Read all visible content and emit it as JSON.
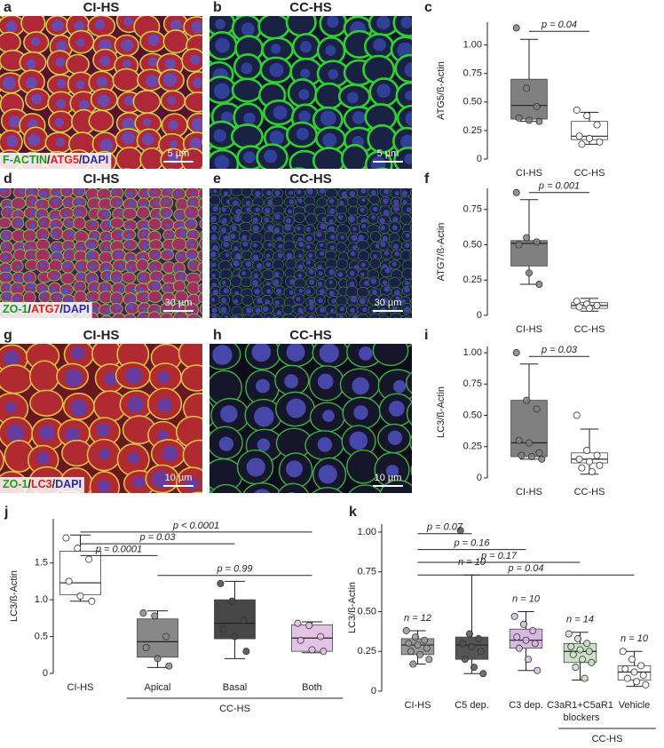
{
  "panels": [
    {
      "letter": "a",
      "title": "CI-HS",
      "stain": [
        {
          "text": "F-ACTIN",
          "color": "#1a9e1a"
        },
        {
          "text": "/",
          "color": "#222222"
        },
        {
          "text": "ATG5",
          "color": "#e0201a"
        },
        {
          "text": "/",
          "color": "#222222"
        },
        {
          "text": "DAPI",
          "color": "#2a2ab0"
        }
      ],
      "scale_bar": "5 µm"
    },
    {
      "letter": "b",
      "title": "CC-HS",
      "scale_bar": "5 µm"
    },
    {
      "letter": "d",
      "title": "CI-HS",
      "stain": [
        {
          "text": "ZO-1",
          "color": "#1a9e1a"
        },
        {
          "text": "/",
          "color": "#222222"
        },
        {
          "text": "ATG7",
          "color": "#e0201a"
        },
        {
          "text": "/",
          "color": "#222222"
        },
        {
          "text": "DAPI",
          "color": "#2a2ab0"
        }
      ],
      "scale_bar": "30 µm"
    },
    {
      "letter": "e",
      "title": "CC-HS",
      "scale_bar": "30 µm"
    },
    {
      "letter": "g",
      "title": "CI-HS",
      "stain": [
        {
          "text": "ZO-1",
          "color": "#1a9e1a"
        },
        {
          "text": "/",
          "color": "#222222"
        },
        {
          "text": "LC3",
          "color": "#e0201a"
        },
        {
          "text": "/",
          "color": "#222222"
        },
        {
          "text": "DAPI",
          "color": "#2a2ab0"
        }
      ],
      "scale_bar": "10 µm"
    },
    {
      "letter": "h",
      "title": "CC-HS",
      "scale_bar": "10 µm"
    }
  ],
  "chart_data": [
    {
      "type": "box",
      "letter": "c",
      "ylabel": "ATG5/ß-Actin",
      "ylim": [
        0,
        1.2
      ],
      "yticks": [
        0,
        0.25,
        {
          "value": 0.5,
          "label": "0.50"
        },
        0.75,
        {
          "value": 1,
          "label": "1.00"
        }
      ],
      "categories": [
        "CI-HS",
        "CC-HS"
      ],
      "boxes": [
        {
          "color": "#808080",
          "min": 0.33,
          "q1": 0.35,
          "median": 0.47,
          "q3": 0.7,
          "max": 1.05,
          "points": [
            1.15,
            0.62,
            0.46,
            0.36,
            0.34,
            0.33
          ]
        },
        {
          "color": "#ffffff",
          "min": 0.13,
          "q1": 0.17,
          "median": 0.2,
          "q3": 0.33,
          "max": 0.41,
          "points": [
            0.43,
            0.38,
            0.3,
            0.2,
            0.18,
            0.15,
            0.13
          ]
        }
      ],
      "brackets": [
        {
          "text": "p = 0.04",
          "from": "CI-HS",
          "to": "CC-HS",
          "y": 1.12
        }
      ]
    },
    {
      "type": "box",
      "letter": "f",
      "ylabel": "ATG7/ß-Actin",
      "ylim": [
        0,
        0.9
      ],
      "yticks": [
        0,
        0.25,
        {
          "value": 0.5,
          "label": "0.50"
        },
        0.75
      ],
      "categories": [
        "CI-HS",
        "CC-HS"
      ],
      "boxes": [
        {
          "color": "#808080",
          "min": 0.22,
          "q1": 0.35,
          "median": 0.51,
          "q3": 0.53,
          "max": 0.82,
          "points": [
            0.87,
            0.55,
            0.52,
            0.5,
            0.3,
            0.22
          ]
        },
        {
          "color": "#ffffff",
          "min": 0.03,
          "q1": 0.05,
          "median": 0.07,
          "q3": 0.09,
          "max": 0.12,
          "points": [
            0.1,
            0.08,
            0.07,
            0.06,
            0.05
          ]
        }
      ],
      "brackets": [
        {
          "text": "p = 0.001",
          "from": "CI-HS",
          "to": "CC-HS",
          "y": 0.87
        }
      ]
    },
    {
      "type": "box",
      "letter": "i",
      "ylabel": "LC3/ß-Actin",
      "ylim": [
        0,
        1.05
      ],
      "yticks": [
        0,
        0.25,
        {
          "value": 0.5,
          "label": "0.50"
        },
        0.75,
        {
          "value": 1,
          "label": "1.00"
        }
      ],
      "categories": [
        "CI-HS",
        "CC-HS"
      ],
      "boxes": [
        {
          "color": "#808080",
          "min": 0.15,
          "q1": 0.17,
          "median": 0.28,
          "q3": 0.62,
          "max": 0.91,
          "points": [
            1.0,
            0.62,
            0.55,
            0.3,
            0.28,
            0.2,
            0.18,
            0.17,
            0.15
          ]
        },
        {
          "color": "#ffffff",
          "min": 0.03,
          "q1": 0.12,
          "median": 0.15,
          "q3": 0.2,
          "max": 0.39,
          "points": [
            0.5,
            0.22,
            0.18,
            0.15,
            0.13,
            0.1,
            0.08,
            0.05
          ]
        }
      ],
      "brackets": [
        {
          "text": "p = 0.03",
          "from": "CI-HS",
          "to": "CC-HS",
          "y": 0.97
        }
      ]
    },
    {
      "type": "box",
      "letter": "j",
      "ylabel": "LC3/ß-Actin",
      "ylim": [
        0,
        2.1
      ],
      "yticks": [
        0,
        0.5,
        {
          "value": 1,
          "label": "1.0"
        },
        1.5
      ],
      "categories": [
        "CI-HS",
        "Apical",
        "Basal",
        "Both"
      ],
      "boxes": [
        {
          "color": "#ffffff",
          "min": 0.98,
          "q1": 1.07,
          "median": 1.23,
          "q3": 1.66,
          "max": 1.88,
          "points": [
            1.84,
            1.7,
            1.55,
            1.25,
            1.05,
            0.98
          ]
        },
        {
          "color": "#888888",
          "min": 0.08,
          "q1": 0.22,
          "median": 0.43,
          "q3": 0.74,
          "max": 0.85,
          "points": [
            0.82,
            0.78,
            0.5,
            0.35,
            0.2,
            0.1
          ]
        },
        {
          "color": "#474747",
          "min": 0.2,
          "q1": 0.47,
          "median": 0.68,
          "q3": 1.0,
          "max": 1.25,
          "points": [
            1.22,
            0.98,
            0.72,
            0.6,
            0.5,
            0.3
          ]
        },
        {
          "color": "#e3c4e6",
          "min": 0.28,
          "q1": 0.3,
          "median": 0.48,
          "q3": 0.66,
          "max": 0.7,
          "points": [
            0.68,
            0.65,
            0.5,
            0.45,
            0.32,
            0.3
          ]
        }
      ],
      "brackets": [
        {
          "text": "p < 0.0001",
          "from": "CI-HS",
          "to": "Both",
          "y": 1.92
        },
        {
          "text": "p = 0.03",
          "from": "CI-HS",
          "to": "Basal",
          "y": 1.76
        },
        {
          "text": "p = 0.0001",
          "from": "CI-HS",
          "to": "Apical",
          "y": 1.6
        },
        {
          "text": "p = 0.99",
          "from": "Apical",
          "to": "Both",
          "y": 1.33
        }
      ],
      "groups": [
        {
          "label": "CC-HS",
          "categories": [
            "Apical",
            "Basal",
            "Both"
          ]
        }
      ]
    },
    {
      "type": "box",
      "letter": "k",
      "ylabel": "LC3/ß-Actin",
      "ylim": [
        0,
        1.05
      ],
      "yticks": [
        0,
        0.25,
        {
          "value": 0.5,
          "label": "0.50"
        },
        0.75,
        {
          "value": 1,
          "label": "1.00"
        }
      ],
      "categories": [
        "CI-HS",
        "C5 dep.",
        "C3 dep.",
        "C3aR1+C5aR1 blockers",
        "Vehicle"
      ],
      "n_labels": [
        "n = 12",
        "n = 10",
        "n = 10",
        "n = 14",
        "n = 10"
      ],
      "boxes": [
        {
          "color": "#999999",
          "min": 0.17,
          "q1": 0.23,
          "median": 0.29,
          "q3": 0.33,
          "max": 0.38,
          "points": [
            0.38,
            0.34,
            0.32,
            0.3,
            0.29,
            0.27,
            0.25,
            0.23,
            0.2,
            0.17
          ]
        },
        {
          "color": "#555555",
          "min": 0.11,
          "q1": 0.2,
          "median": 0.29,
          "q3": 0.34,
          "max": 0.73,
          "points": [
            1.01,
            0.36,
            0.33,
            0.3,
            0.28,
            0.25,
            0.2,
            0.15,
            0.11
          ]
        },
        {
          "color": "#d8b8e0",
          "min": 0.13,
          "q1": 0.27,
          "median": 0.32,
          "q3": 0.39,
          "max": 0.5,
          "points": [
            0.47,
            0.42,
            0.38,
            0.34,
            0.32,
            0.3,
            0.27,
            0.2,
            0.13
          ]
        },
        {
          "color": "#cfe0c8",
          "min": 0.07,
          "q1": 0.18,
          "median": 0.25,
          "q3": 0.3,
          "max": 0.37,
          "points": [
            0.36,
            0.33,
            0.3,
            0.28,
            0.26,
            0.25,
            0.23,
            0.2,
            0.18,
            0.15,
            0.08
          ]
        },
        {
          "color": "#ffffff",
          "min": 0.03,
          "q1": 0.07,
          "median": 0.12,
          "q3": 0.16,
          "max": 0.25,
          "points": [
            0.25,
            0.2,
            0.16,
            0.14,
            0.12,
            0.1,
            0.08,
            0.06,
            0.04
          ]
        }
      ],
      "brackets": [
        {
          "text": "p = 0.07",
          "from": "CI-HS",
          "to": "C5 dep.",
          "y": 0.99
        },
        {
          "text": "p = 0.16",
          "from": "CI-HS",
          "to": "C3 dep.",
          "y": 0.89
        },
        {
          "text": "p = 0.17",
          "from": "CI-HS",
          "to": "C3aR1+C5aR1 blockers",
          "y": 0.81
        },
        {
          "text": "p = 0.04",
          "from": "CI-HS",
          "to": "Vehicle",
          "y": 0.73
        }
      ],
      "groups": [
        {
          "label": "CC-HS",
          "categories": [
            "C3aR1+C5aR1 blockers",
            "Vehicle"
          ]
        }
      ]
    }
  ]
}
